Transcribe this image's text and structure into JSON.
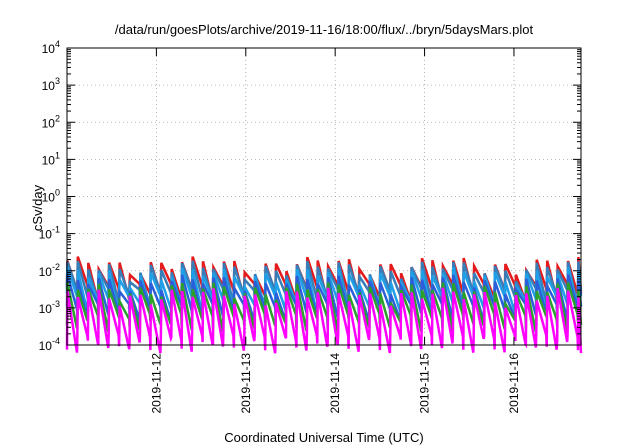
{
  "chart_data": {
    "type": "line",
    "title": "/data/run/goesPlots/archive/2019-11-16/18:00/flux/../bryn/5daysMars.plot",
    "xlabel": "Coordinated Universal Time (UTC)",
    "ylabel": "cSv/day",
    "yscale": "log",
    "ylim": [
      0.0001,
      10000
    ],
    "xlim": [
      "2019-11-11T00:00",
      "2019-11-16T18:00"
    ],
    "x_ticks": [
      "2019-11-12",
      "2019-11-13",
      "2019-11-14",
      "2019-11-15",
      "2019-11-16"
    ],
    "y_ticks": [
      {
        "base": "10",
        "exp": "-4"
      },
      {
        "base": "10",
        "exp": "-3"
      },
      {
        "base": "10",
        "exp": "-2"
      },
      {
        "base": "10",
        "exp": "-1"
      },
      {
        "base": "10",
        "exp": "0"
      },
      {
        "base": "10",
        "exp": "1"
      },
      {
        "base": "10",
        "exp": "2"
      },
      {
        "base": "10",
        "exp": "3"
      },
      {
        "base": "10",
        "exp": "4"
      }
    ],
    "grid": true,
    "legend": "none",
    "sawtooth_period_hours": 2.8,
    "series": [
      {
        "color": "#e41a1c",
        "peak": 0.015,
        "trough": 0.003
      },
      {
        "color": "#377eb8",
        "peak": 0.012,
        "trough": 0.0022
      },
      {
        "color": "#1f9fe8",
        "peak": 0.008,
        "trough": 0.0014
      },
      {
        "color": "#2b5fd9",
        "peak": 0.005,
        "trough": 0.00085
      },
      {
        "color": "#2ca02c",
        "peak": 0.0032,
        "trough": 0.00045
      },
      {
        "color": "#ff00ff",
        "peak": 0.0022,
        "trough": 0.00012
      }
    ]
  }
}
